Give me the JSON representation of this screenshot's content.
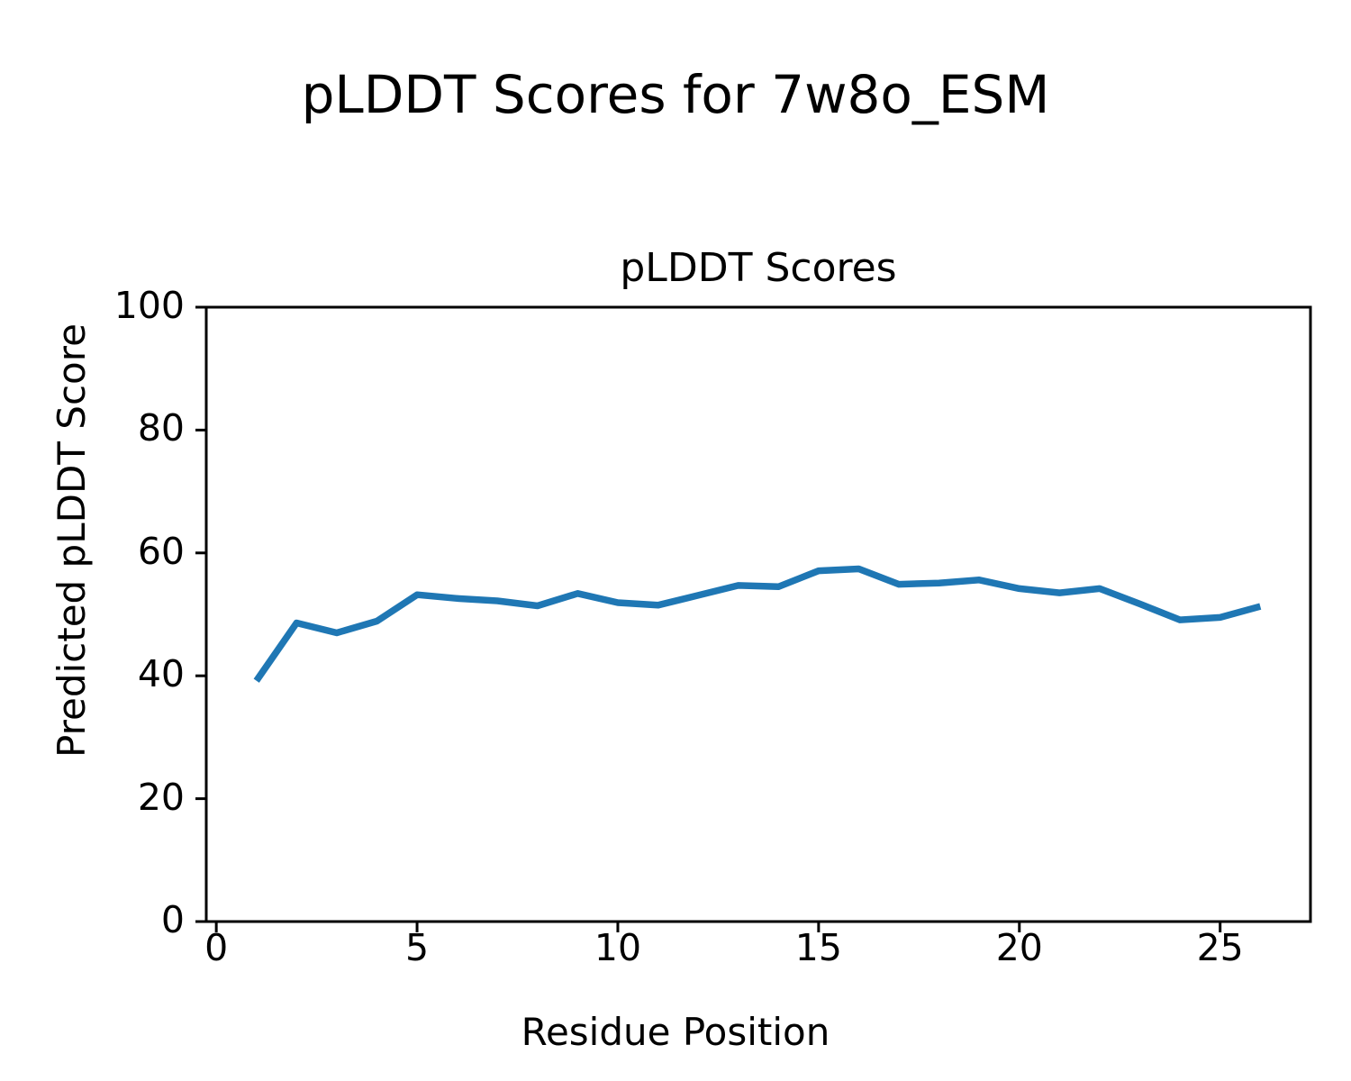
{
  "chart_data": {
    "type": "line",
    "suptitle": "pLDDT Scores for 7w8o_ESM",
    "title": "pLDDT Scores",
    "xlabel": "Residue Position",
    "ylabel": "Predicted pLDDT Score",
    "x": [
      1,
      2,
      3,
      4,
      5,
      6,
      7,
      8,
      9,
      10,
      11,
      12,
      13,
      14,
      15,
      16,
      17,
      18,
      19,
      20,
      21,
      22,
      23,
      24,
      25,
      26
    ],
    "y": [
      39.2,
      48.6,
      47.0,
      48.9,
      53.2,
      52.6,
      52.2,
      51.4,
      53.4,
      51.9,
      51.5,
      53.1,
      54.7,
      54.5,
      57.1,
      57.4,
      54.9,
      55.1,
      55.6,
      54.2,
      53.5,
      54.2,
      51.7,
      49.1,
      49.5,
      51.3
    ],
    "xticks": [
      0,
      5,
      10,
      15,
      20,
      25
    ],
    "yticks": [
      0,
      20,
      40,
      60,
      80,
      100
    ],
    "xlim": [
      -0.25,
      27.25
    ],
    "ylim": [
      0,
      100
    ],
    "grid": false,
    "legend": "none",
    "line_color": "#1f77b4",
    "axis_color": "#000000",
    "background_color": "#ffffff"
  }
}
